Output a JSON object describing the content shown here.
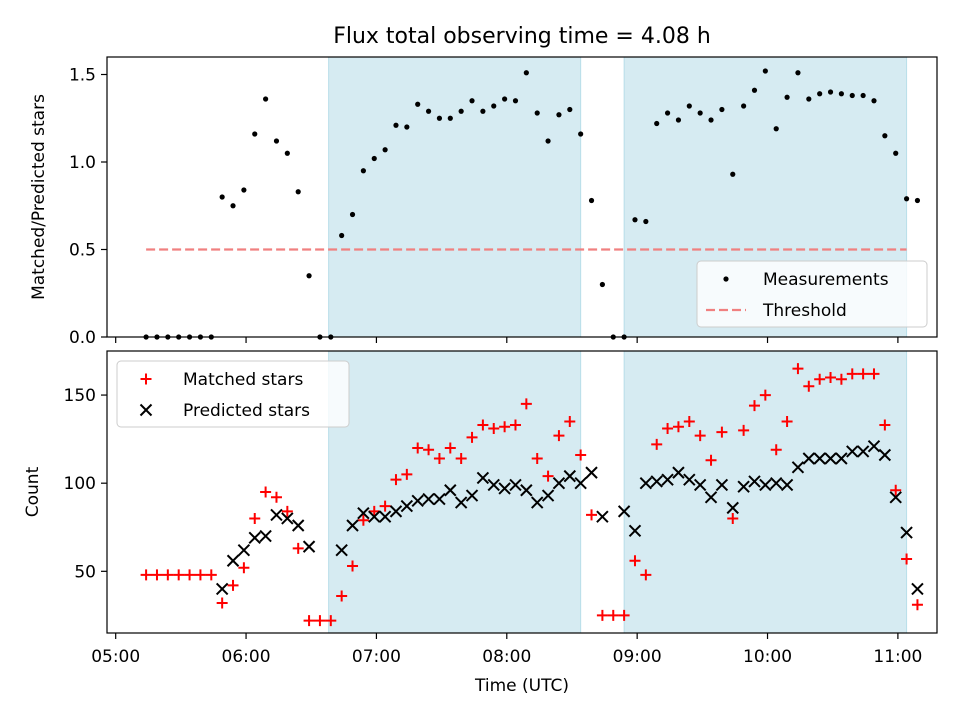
{
  "chart_data": [
    {
      "type": "scatter",
      "title": "Flux total observing time = 4.08 h",
      "xlabel": "",
      "ylabel": "Matched/Predicted stars",
      "ylim": [
        0,
        1.6
      ],
      "yticks": [
        0.0,
        0.5,
        1.0,
        1.5
      ],
      "ytick_labels": [
        "0.0",
        "0.5",
        "1.0",
        "1.5"
      ],
      "xlim": [
        "04:56",
        "11:18"
      ],
      "xticks": [
        "05:00",
        "06:00",
        "07:00",
        "08:00",
        "09:00",
        "10:00",
        "11:00"
      ],
      "show_xtick_labels": false,
      "shaded_spans": [
        [
          "06:38",
          "08:34"
        ],
        [
          "08:54",
          "11:04"
        ]
      ],
      "span_color": "#add8e6",
      "legend": {
        "position": "lower-right",
        "entries": [
          {
            "label": "Measurements",
            "marker": "dot",
            "color": "#000000"
          },
          {
            "label": "Threshold",
            "marker": "dashed-line",
            "color": "#f08080"
          }
        ]
      },
      "threshold": {
        "name": "Threshold",
        "y": 0.5,
        "x_start": "05:14",
        "x_end": "11:04",
        "color": "#f08080",
        "style": "dashed"
      },
      "series": [
        {
          "name": "Measurements",
          "marker": "dot",
          "color": "#000000",
          "points": [
            [
              "05:14",
              0
            ],
            [
              "05:19",
              0
            ],
            [
              "05:24",
              0
            ],
            [
              "05:29",
              0
            ],
            [
              "05:34",
              0
            ],
            [
              "05:39",
              0
            ],
            [
              "05:44",
              0
            ],
            [
              "05:49",
              0.8
            ],
            [
              "05:54",
              0.75
            ],
            [
              "05:59",
              0.84
            ],
            [
              "06:04",
              1.16
            ],
            [
              "06:09",
              1.36
            ],
            [
              "06:14",
              1.12
            ],
            [
              "06:19",
              1.05
            ],
            [
              "06:24",
              0.83
            ],
            [
              "06:29",
              0.35
            ],
            [
              "06:34",
              0
            ],
            [
              "06:39",
              0
            ],
            [
              "06:44",
              0.58
            ],
            [
              "06:49",
              0.7
            ],
            [
              "06:54",
              0.95
            ],
            [
              "06:59",
              1.02
            ],
            [
              "07:04",
              1.07
            ],
            [
              "07:09",
              1.21
            ],
            [
              "07:14",
              1.2
            ],
            [
              "07:19",
              1.33
            ],
            [
              "07:24",
              1.29
            ],
            [
              "07:29",
              1.25
            ],
            [
              "07:34",
              1.25
            ],
            [
              "07:39",
              1.29
            ],
            [
              "07:44",
              1.35
            ],
            [
              "07:49",
              1.29
            ],
            [
              "07:54",
              1.32
            ],
            [
              "07:59",
              1.36
            ],
            [
              "08:04",
              1.35
            ],
            [
              "08:09",
              1.51
            ],
            [
              "08:14",
              1.28
            ],
            [
              "08:19",
              1.12
            ],
            [
              "08:24",
              1.27
            ],
            [
              "08:29",
              1.3
            ],
            [
              "08:34",
              1.16
            ],
            [
              "08:39",
              0.78
            ],
            [
              "08:44",
              0.3
            ],
            [
              "08:49",
              0
            ],
            [
              "08:54",
              0
            ],
            [
              "08:59",
              0.67
            ],
            [
              "09:04",
              0.66
            ],
            [
              "09:09",
              1.22
            ],
            [
              "09:14",
              1.28
            ],
            [
              "09:19",
              1.24
            ],
            [
              "09:24",
              1.32
            ],
            [
              "09:29",
              1.28
            ],
            [
              "09:34",
              1.24
            ],
            [
              "09:39",
              1.3
            ],
            [
              "09:44",
              0.93
            ],
            [
              "09:49",
              1.32
            ],
            [
              "09:54",
              1.41
            ],
            [
              "09:59",
              1.52
            ],
            [
              "10:04",
              1.19
            ],
            [
              "10:09",
              1.37
            ],
            [
              "10:14",
              1.51
            ],
            [
              "10:19",
              1.36
            ],
            [
              "10:24",
              1.39
            ],
            [
              "10:29",
              1.4
            ],
            [
              "10:34",
              1.39
            ],
            [
              "10:39",
              1.38
            ],
            [
              "10:44",
              1.38
            ],
            [
              "10:49",
              1.35
            ],
            [
              "10:54",
              1.15
            ],
            [
              "10:59",
              1.05
            ],
            [
              "11:04",
              0.79
            ],
            [
              "11:09",
              0.78
            ]
          ]
        }
      ]
    },
    {
      "type": "scatter",
      "title": "",
      "xlabel": "Time (UTC)",
      "ylabel": "Count",
      "ylim": [
        15,
        175
      ],
      "yticks": [
        50,
        100,
        150
      ],
      "ytick_labels": [
        "50",
        "100",
        "150"
      ],
      "xlim": [
        "04:56",
        "11:18"
      ],
      "xticks": [
        "05:00",
        "06:00",
        "07:00",
        "08:00",
        "09:00",
        "10:00",
        "11:00"
      ],
      "xtick_labels": [
        "05:00",
        "06:00",
        "07:00",
        "08:00",
        "09:00",
        "10:00",
        "11:00"
      ],
      "shaded_spans": [
        [
          "06:38",
          "08:34"
        ],
        [
          "08:54",
          "11:04"
        ]
      ],
      "span_color": "#add8e6",
      "legend": {
        "position": "upper-left",
        "entries": [
          {
            "label": "Matched stars",
            "marker": "plus",
            "color": "#ff0000"
          },
          {
            "label": "Predicted stars",
            "marker": "x",
            "color": "#000000"
          }
        ]
      },
      "series": [
        {
          "name": "Matched stars",
          "marker": "plus",
          "color": "#ff0000",
          "points": [
            [
              "05:14",
              48
            ],
            [
              "05:19",
              48
            ],
            [
              "05:24",
              48
            ],
            [
              "05:29",
              48
            ],
            [
              "05:34",
              48
            ],
            [
              "05:39",
              48
            ],
            [
              "05:44",
              48
            ],
            [
              "05:49",
              32
            ],
            [
              "05:54",
              42
            ],
            [
              "05:59",
              52
            ],
            [
              "06:04",
              80
            ],
            [
              "06:09",
              95
            ],
            [
              "06:14",
              92
            ],
            [
              "06:19",
              84
            ],
            [
              "06:24",
              63
            ],
            [
              "06:29",
              22
            ],
            [
              "06:34",
              22
            ],
            [
              "06:39",
              22
            ],
            [
              "06:44",
              36
            ],
            [
              "06:49",
              53
            ],
            [
              "06:54",
              79
            ],
            [
              "06:59",
              84
            ],
            [
              "07:04",
              87
            ],
            [
              "07:09",
              102
            ],
            [
              "07:14",
              105
            ],
            [
              "07:19",
              120
            ],
            [
              "07:24",
              119
            ],
            [
              "07:29",
              114
            ],
            [
              "07:34",
              120
            ],
            [
              "07:39",
              114
            ],
            [
              "07:44",
              126
            ],
            [
              "07:49",
              133
            ],
            [
              "07:54",
              131
            ],
            [
              "07:59",
              132
            ],
            [
              "08:04",
              133
            ],
            [
              "08:09",
              145
            ],
            [
              "08:14",
              114
            ],
            [
              "08:19",
              104
            ],
            [
              "08:24",
              127
            ],
            [
              "08:29",
              135
            ],
            [
              "08:34",
              116
            ],
            [
              "08:39",
              82
            ],
            [
              "08:44",
              25
            ],
            [
              "08:49",
              25
            ],
            [
              "08:54",
              25
            ],
            [
              "08:59",
              56
            ],
            [
              "09:04",
              48
            ],
            [
              "09:09",
              122
            ],
            [
              "09:14",
              131
            ],
            [
              "09:19",
              132
            ],
            [
              "09:24",
              135
            ],
            [
              "09:29",
              127
            ],
            [
              "09:34",
              113
            ],
            [
              "09:39",
              129
            ],
            [
              "09:44",
              80
            ],
            [
              "09:49",
              130
            ],
            [
              "09:54",
              144
            ],
            [
              "09:59",
              150
            ],
            [
              "10:04",
              119
            ],
            [
              "10:09",
              135
            ],
            [
              "10:14",
              165
            ],
            [
              "10:19",
              155
            ],
            [
              "10:24",
              159
            ],
            [
              "10:29",
              160
            ],
            [
              "10:34",
              159
            ],
            [
              "10:39",
              162
            ],
            [
              "10:44",
              162
            ],
            [
              "10:49",
              162
            ],
            [
              "10:54",
              133
            ],
            [
              "10:59",
              96
            ],
            [
              "11:04",
              57
            ],
            [
              "11:09",
              31
            ]
          ]
        },
        {
          "name": "Predicted stars",
          "marker": "x",
          "color": "#000000",
          "points": [
            [
              "05:49",
              40
            ],
            [
              "05:54",
              56
            ],
            [
              "05:59",
              62
            ],
            [
              "06:04",
              69
            ],
            [
              "06:09",
              70
            ],
            [
              "06:14",
              82
            ],
            [
              "06:19",
              80
            ],
            [
              "06:24",
              76
            ],
            [
              "06:29",
              64
            ],
            [
              "06:44",
              62
            ],
            [
              "06:49",
              76
            ],
            [
              "06:54",
              83
            ],
            [
              "06:59",
              81
            ],
            [
              "07:04",
              81
            ],
            [
              "07:09",
              84
            ],
            [
              "07:14",
              87
            ],
            [
              "07:19",
              90
            ],
            [
              "07:24",
              91
            ],
            [
              "07:29",
              91
            ],
            [
              "07:34",
              96
            ],
            [
              "07:39",
              89
            ],
            [
              "07:44",
              93
            ],
            [
              "07:49",
              103
            ],
            [
              "07:54",
              99
            ],
            [
              "07:59",
              97
            ],
            [
              "08:04",
              99
            ],
            [
              "08:09",
              96
            ],
            [
              "08:14",
              89
            ],
            [
              "08:19",
              93
            ],
            [
              "08:24",
              100
            ],
            [
              "08:29",
              104
            ],
            [
              "08:34",
              100
            ],
            [
              "08:39",
              106
            ],
            [
              "08:44",
              81
            ],
            [
              "08:54",
              84
            ],
            [
              "08:59",
              73
            ],
            [
              "09:04",
              100
            ],
            [
              "09:09",
              101
            ],
            [
              "09:14",
              102
            ],
            [
              "09:19",
              106
            ],
            [
              "09:24",
              102
            ],
            [
              "09:29",
              99
            ],
            [
              "09:34",
              92
            ],
            [
              "09:39",
              99
            ],
            [
              "09:44",
              86
            ],
            [
              "09:49",
              98
            ],
            [
              "09:54",
              101
            ],
            [
              "09:59",
              99
            ],
            [
              "10:04",
              100
            ],
            [
              "10:09",
              99
            ],
            [
              "10:14",
              109
            ],
            [
              "10:19",
              114
            ],
            [
              "10:24",
              114
            ],
            [
              "10:29",
              114
            ],
            [
              "10:34",
              114
            ],
            [
              "10:39",
              118
            ],
            [
              "10:44",
              118
            ],
            [
              "10:49",
              121
            ],
            [
              "10:54",
              116
            ],
            [
              "10:59",
              92
            ],
            [
              "11:04",
              72
            ],
            [
              "11:09",
              40
            ]
          ]
        }
      ]
    }
  ]
}
